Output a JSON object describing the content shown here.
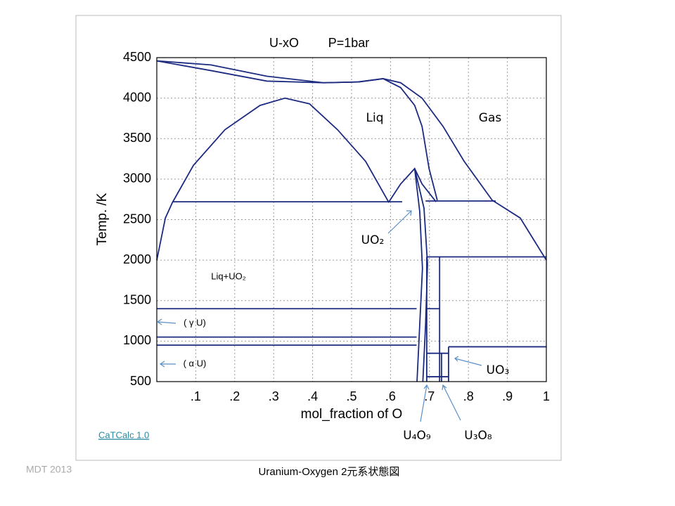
{
  "chart_data": {
    "type": "phase-diagram",
    "title": "U-xO",
    "subtitle": "P=1bar",
    "xlabel": "mol_fraction of O",
    "ylabel": "Temp.  /K",
    "color": "#1c2a80",
    "xlim": [
      0,
      1
    ],
    "ylim": [
      500,
      4500
    ],
    "xticks": [
      {
        "value": 0.1,
        "label": ".1"
      },
      {
        "value": 0.2,
        "label": ".2"
      },
      {
        "value": 0.3,
        "label": ".3"
      },
      {
        "value": 0.4,
        "label": ".4"
      },
      {
        "value": 0.5,
        "label": ".5"
      },
      {
        "value": 0.6,
        "label": ".6"
      },
      {
        "value": 0.7,
        "label": ".7"
      },
      {
        "value": 0.8,
        "label": ".8"
      },
      {
        "value": 0.9,
        "label": ".9"
      },
      {
        "value": 1,
        "label": "1"
      }
    ],
    "yticks": [
      500,
      1000,
      1500,
      2000,
      2500,
      3000,
      3500,
      4000,
      4500
    ],
    "grid": true,
    "series": [
      {
        "x": [
          0,
          0.022,
          0.04,
          0.094,
          0.175,
          0.265,
          0.329,
          0.392,
          0.464,
          0.536,
          0.596
        ],
        "y": [
          2000,
          2520,
          2710,
          3170,
          3610,
          3910,
          4000,
          3930,
          3610,
          3220,
          2710
        ]
      },
      {
        "x": [
          0.596,
          0.626,
          0.662,
          0.681,
          0.717
        ],
        "y": [
          2720,
          2940,
          3130,
          2940,
          2720
        ]
      },
      {
        "x": [
          0.662,
          0.675,
          0.682,
          0.675,
          0.668
        ],
        "y": [
          3130,
          2600,
          1900,
          1200,
          500
        ]
      },
      {
        "x": [
          0.662,
          0.686,
          0.695,
          0.69,
          0.683
        ],
        "y": [
          3130,
          2640,
          1950,
          1200,
          500
        ]
      },
      {
        "x": [
          0,
          0.139,
          0.283,
          0.428,
          0.518,
          0.581,
          0.626,
          0.681,
          0.735,
          0.789,
          0.861,
          0.933,
          1.0
        ],
        "y": [
          4460,
          4410,
          4270,
          4190,
          4200,
          4240,
          4190,
          4000,
          3650,
          3220,
          2740,
          2520,
          2000
        ]
      },
      {
        "x": [
          0,
          0.139,
          0.283,
          0.428,
          0.518,
          0.581,
          0.626,
          0.662,
          0.681,
          0.699,
          0.72
        ],
        "y": [
          4460,
          4340,
          4210,
          4190,
          4200,
          4240,
          4130,
          3910,
          3650,
          3130,
          2740
        ]
      },
      {
        "x": [
          0.04,
          0.63
        ],
        "y": [
          2720,
          2720
        ]
      },
      {
        "x": [
          0.69,
          0.87
        ],
        "y": [
          2730,
          2730
        ]
      },
      {
        "x": [
          0,
          0.667
        ],
        "y": [
          1400,
          1400
        ]
      },
      {
        "x": [
          0,
          0.667
        ],
        "y": [
          1050,
          1050
        ]
      },
      {
        "x": [
          0,
          0.667
        ],
        "y": [
          950,
          950
        ]
      },
      {
        "x": [
          0.693,
          1.0
        ],
        "y": [
          2040,
          2040
        ]
      },
      {
        "x": [
          0.749,
          1.0
        ],
        "y": [
          930,
          930
        ]
      },
      {
        "x": [
          0.693,
          0.693
        ],
        "y": [
          2040,
          500
        ]
      },
      {
        "x": [
          0.726,
          0.726
        ],
        "y": [
          2040,
          500
        ]
      },
      {
        "x": [
          0.731,
          0.731
        ],
        "y": [
          850,
          500
        ]
      },
      {
        "x": [
          0.749,
          0.749
        ],
        "y": [
          930,
          500
        ]
      },
      {
        "x": [
          0.693,
          0.726
        ],
        "y": [
          1400,
          1400
        ]
      },
      {
        "x": [
          0.693,
          0.749
        ],
        "y": [
          850,
          850
        ]
      },
      {
        "x": [
          0.693,
          0.749
        ],
        "y": [
          560,
          560
        ]
      }
    ],
    "annotations": [
      "Liq",
      "Gas",
      "UO₂",
      "Liq+UO₂",
      "( γ U)",
      "( α U)",
      "UO₃",
      "U₄O₉",
      "U₃O₈"
    ],
    "software": "CaTCalc 1.0",
    "credit": "MDT  2013",
    "caption": "Uranium-Oxygen 2元系状態図"
  }
}
